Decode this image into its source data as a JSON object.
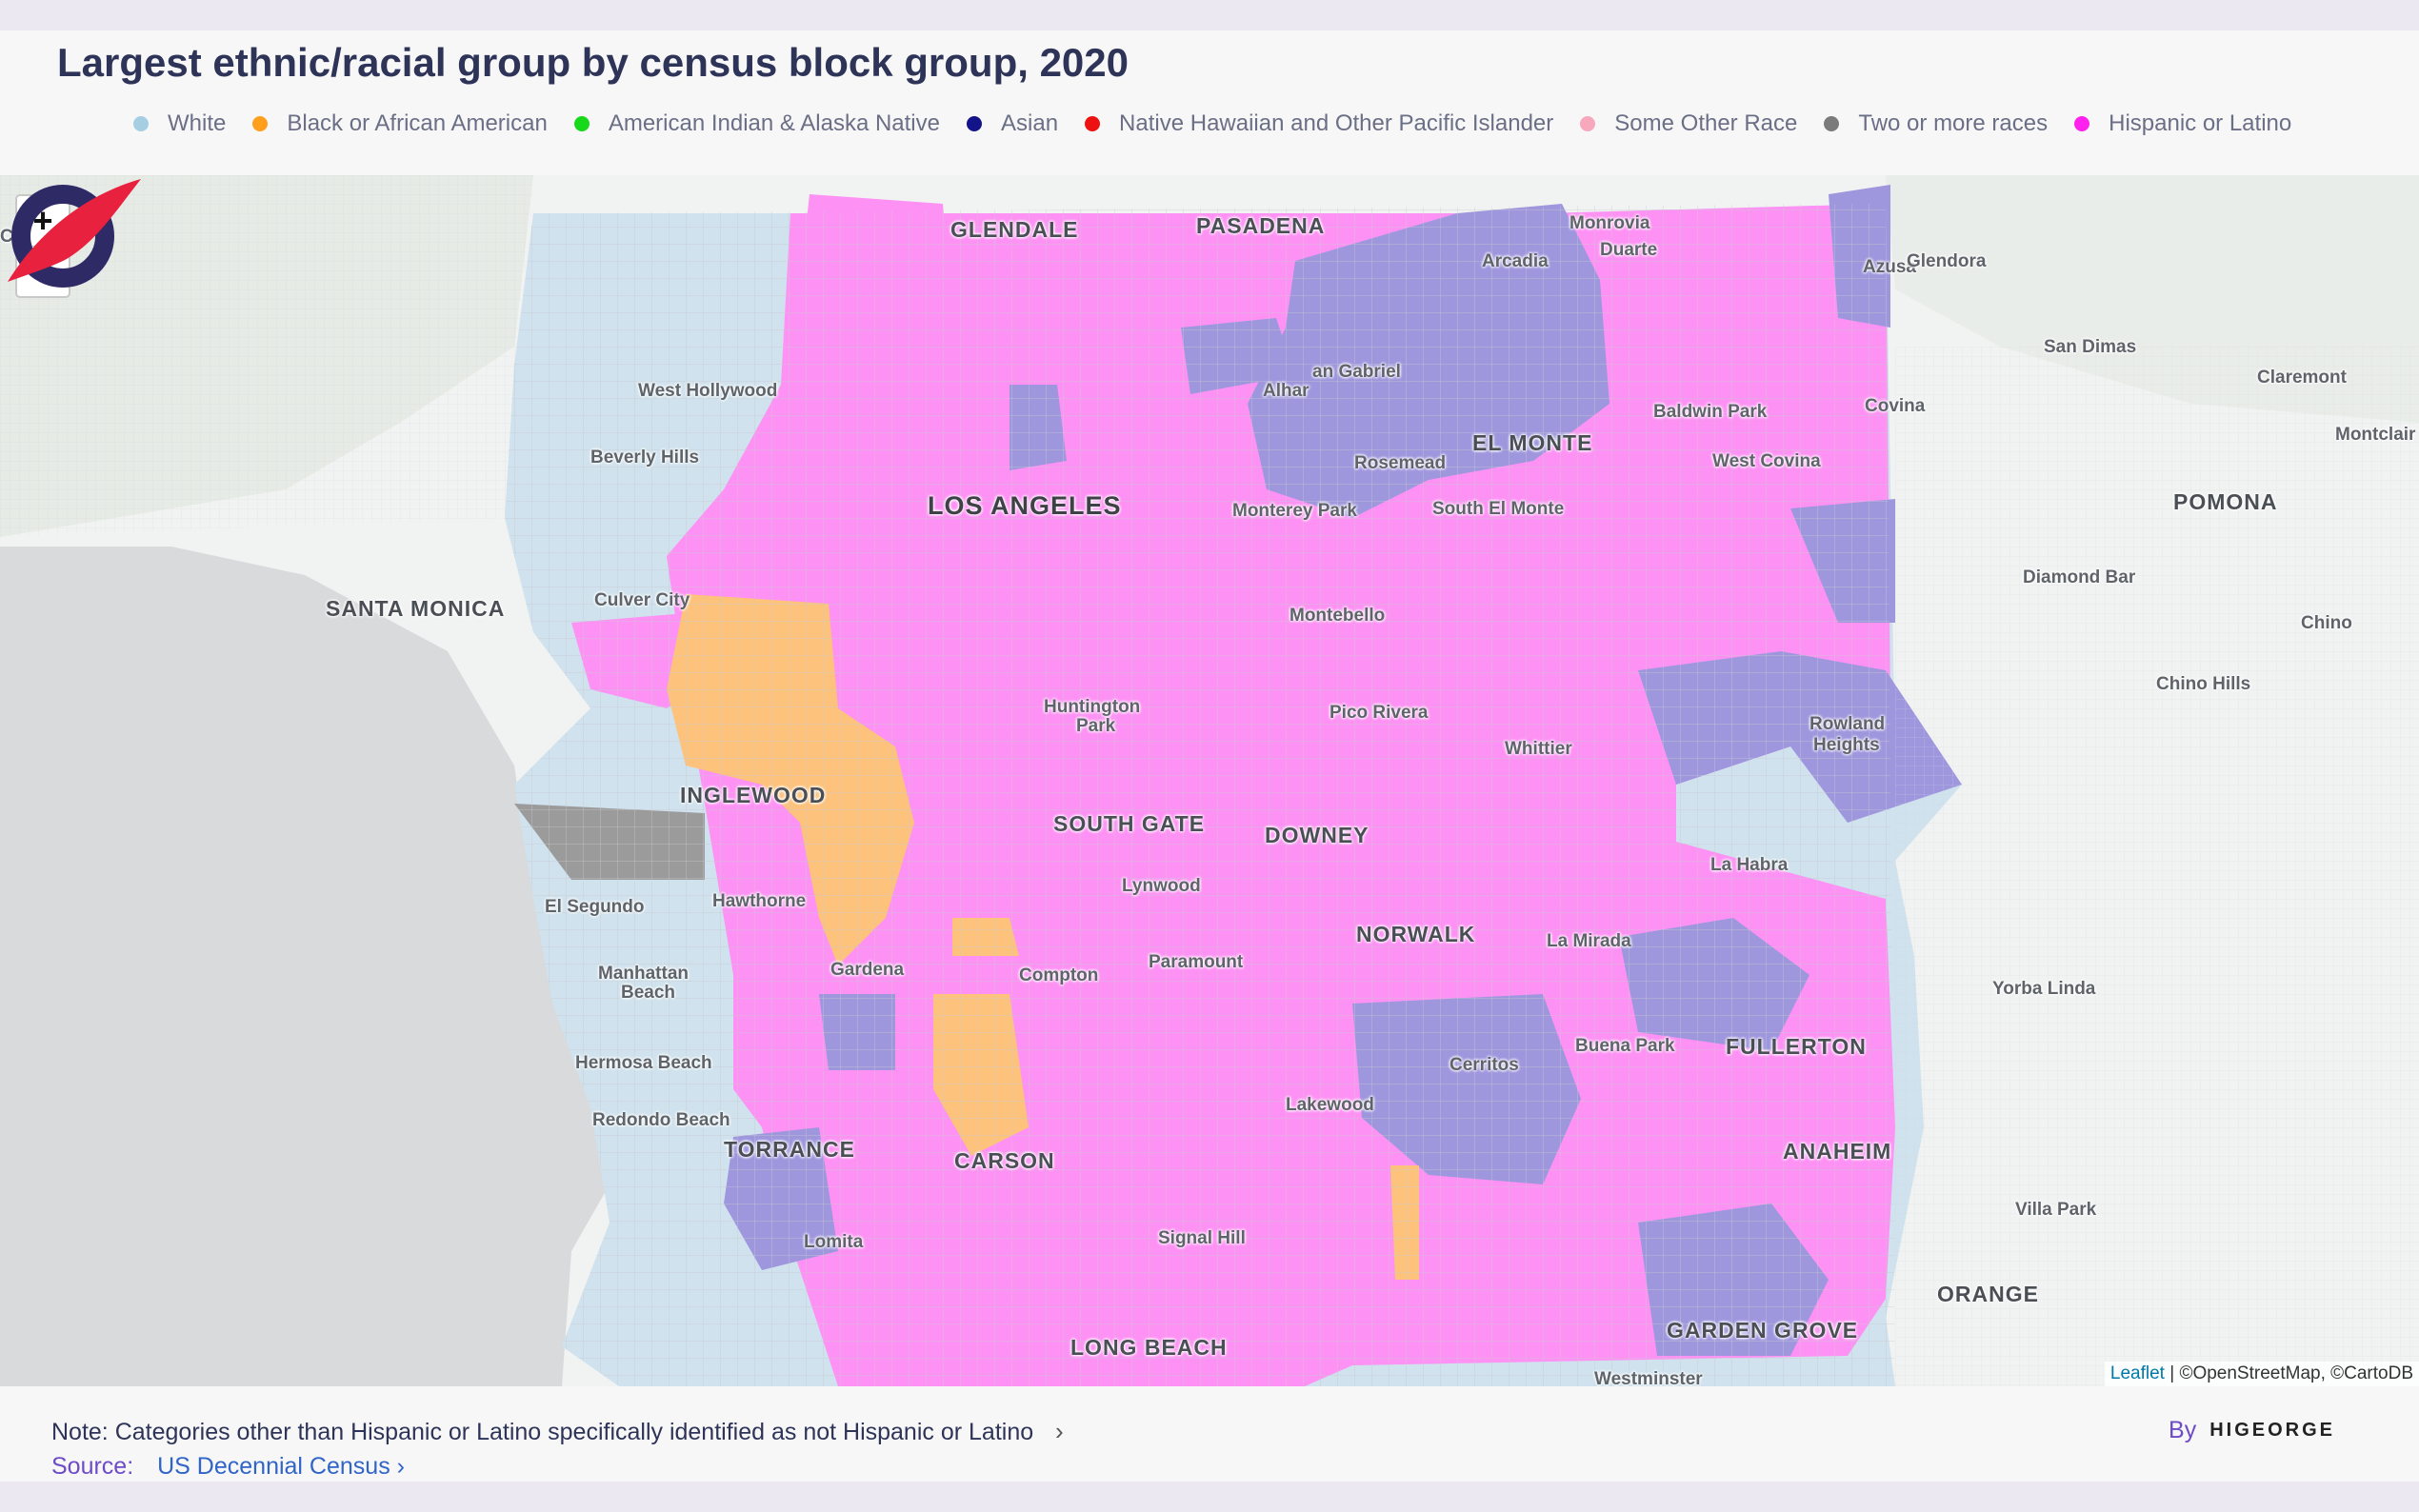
{
  "title": "Largest ethnic/racial group by census block group, 2020",
  "legend": [
    {
      "label": "White",
      "color": "#a6cee3"
    },
    {
      "label": "Black or African American",
      "color": "#ff9f1c"
    },
    {
      "label": "American Indian & Alaska Native",
      "color": "#18d81a"
    },
    {
      "label": "Asian",
      "color": "#14148a"
    },
    {
      "label": "Native Hawaiian and Other Pacific Islander",
      "color": "#ee1111"
    },
    {
      "label": "Some Other Race",
      "color": "#f7a8bd"
    },
    {
      "label": "Two or more races",
      "color": "#7b7b7b"
    },
    {
      "label": "Hispanic or Latino",
      "color": "#ff22ee"
    }
  ],
  "map": {
    "zoom_in_label": "+",
    "zoom_out_label": "−",
    "attribution_link": "Leaflet",
    "attribution_text": " | ©OpenStreetMap, ©CartoDB",
    "places": {
      "glendale": "GLENDALE",
      "pasadena": "PASADENA",
      "monrovia": "Monrovia",
      "duarte": "Duarte",
      "arcadia": "Arcadia",
      "azusa": "Azusa",
      "glendora": "Glendora",
      "san_dimas": "San Dimas",
      "claremont": "Claremont",
      "montclair": "Montclair",
      "covina": "Covina",
      "west_hollywood": "West Hollywood",
      "san_gabriel": "an Gabriel",
      "alhambra": "Alhar",
      "baldwin_park": "Baldwin Park",
      "el_monte": "EL MONTE",
      "beverly_hills": "Beverly Hills",
      "rosemead": "Rosemead",
      "west_covina": "West Covina",
      "pomona": "POMONA",
      "los_angeles": "LOS ANGELES",
      "monterey_park": "Monterey Park",
      "south_el_monte": "South El Monte",
      "santa_monica": "SANTA MONICA",
      "culver_city": "Culver City",
      "diamond_bar": "Diamond Bar",
      "montebello": "Montebello",
      "chino": "Chino",
      "chino_hills": "Chino Hills",
      "huntington_park_1": "Huntington",
      "huntington_park_2": "Park",
      "pico_rivera": "Pico Rivera",
      "rowland_heights_1": "Rowland",
      "rowland_heights_2": "Heights",
      "whittier": "Whittier",
      "inglewood": "INGLEWOOD",
      "south_gate": "SOUTH GATE",
      "downey": "DOWNEY",
      "la_habra": "La Habra",
      "el_segundo": "El Segundo",
      "lynwood": "Lynwood",
      "hawthorne": "Hawthorne",
      "norwalk": "NORWALK",
      "la_mirada": "La Mirada",
      "paramount": "Paramount",
      "gardena": "Gardena",
      "compton": "Compton",
      "manhattan_beach_1": "Manhattan",
      "manhattan_beach_2": "Beach",
      "yorba_linda": "Yorba Linda",
      "buena_park": "Buena Park",
      "fullerton": "FULLERTON",
      "hermosa_beach": "Hermosa Beach",
      "cerritos": "Cerritos",
      "lakewood": "Lakewood",
      "redondo_beach": "Redondo Beach",
      "torrance": "TORRANCE",
      "anaheim": "ANAHEIM",
      "carson": "CARSON",
      "villa_park": "Villa Park",
      "signal_hill": "Signal Hill",
      "lomita": "Lomita",
      "orange": "ORANGE",
      "garden_grove": "GARDEN GROVE",
      "long_beach": "LONG BEACH",
      "westminster": "Westminster",
      "calabasas": "Ca    as"
    }
  },
  "footer": {
    "note": "Note: Categories other than Hispanic or Latino specifically identified as not Hispanic or Latino",
    "source_label": "Source:",
    "source_link": "US Decennial Census",
    "by_label": "By",
    "brand": "HIGEORGE"
  }
}
